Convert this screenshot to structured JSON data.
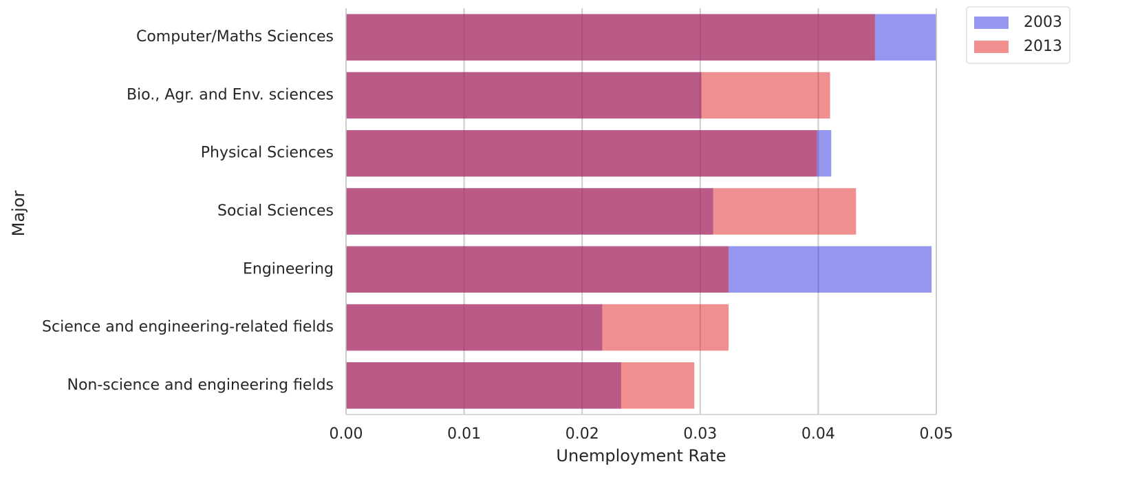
{
  "chart_data": {
    "type": "barh-overlap",
    "xlabel": "Unemployment Rate",
    "ylabel": "Major",
    "categories": [
      "Computer/Maths Sciences",
      "Bio., Agr. and Env. sciences",
      "Physical Sciences",
      "Social Sciences",
      "Engineering",
      "Science and engineering-related fields",
      "Non-science and engineering fields"
    ],
    "series": [
      {
        "name": "2003",
        "color": "#2a2ee0",
        "values": [
          0.05,
          0.0301,
          0.0411,
          0.0311,
          0.0496,
          0.0217,
          0.0233
        ]
      },
      {
        "name": "2013",
        "color": "#e02020",
        "values": [
          0.0448,
          0.041,
          0.0399,
          0.0432,
          0.0324,
          0.0324,
          0.0295
        ]
      }
    ],
    "xlim": [
      0,
      0.05
    ],
    "xticks": [
      {
        "value": 0,
        "label": "0.00"
      },
      0.01,
      0.02,
      0.03,
      0.04,
      0.05
    ],
    "grid": true,
    "legend": "upper right outside"
  }
}
